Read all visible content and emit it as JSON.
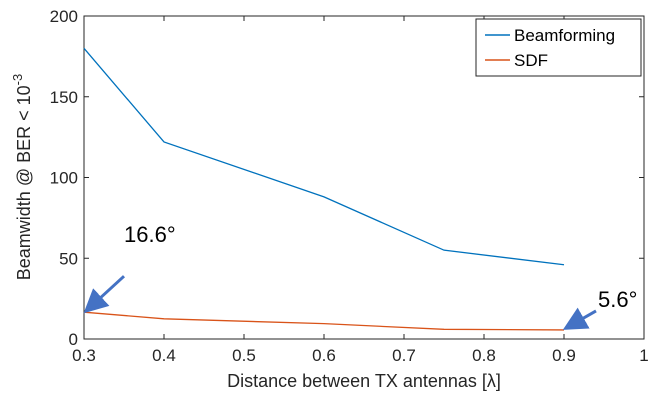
{
  "chart_data": {
    "type": "line",
    "xlabel": "Distance between TX antennas [λ]",
    "ylabel_main": "Beamwidth @ BER < 10",
    "ylabel_exp": "-3",
    "xlim": [
      0.3,
      1
    ],
    "ylim": [
      0,
      200
    ],
    "xticks": [
      "0.3",
      "0.4",
      "0.5",
      "0.6",
      "0.7",
      "0.8",
      "0.9",
      "1"
    ],
    "yticks": [
      "0",
      "50",
      "100",
      "150",
      "200"
    ],
    "grid": false,
    "legend_position": "top-right",
    "series": [
      {
        "name": "Beamforming",
        "color": "#0072BD",
        "x": [
          0.3,
          0.4,
          0.6,
          0.75,
          0.9
        ],
        "y": [
          180,
          122,
          88,
          55,
          46
        ]
      },
      {
        "name": "SDF",
        "color": "#D95319",
        "x": [
          0.3,
          0.4,
          0.6,
          0.75,
          0.9
        ],
        "y": [
          16.6,
          12.5,
          9.5,
          6,
          5.6
        ]
      }
    ],
    "annotations": [
      {
        "text": "16.6°",
        "x": 0.3,
        "y": 16.6
      },
      {
        "text": "5.6°",
        "x": 0.9,
        "y": 5.6
      }
    ]
  }
}
